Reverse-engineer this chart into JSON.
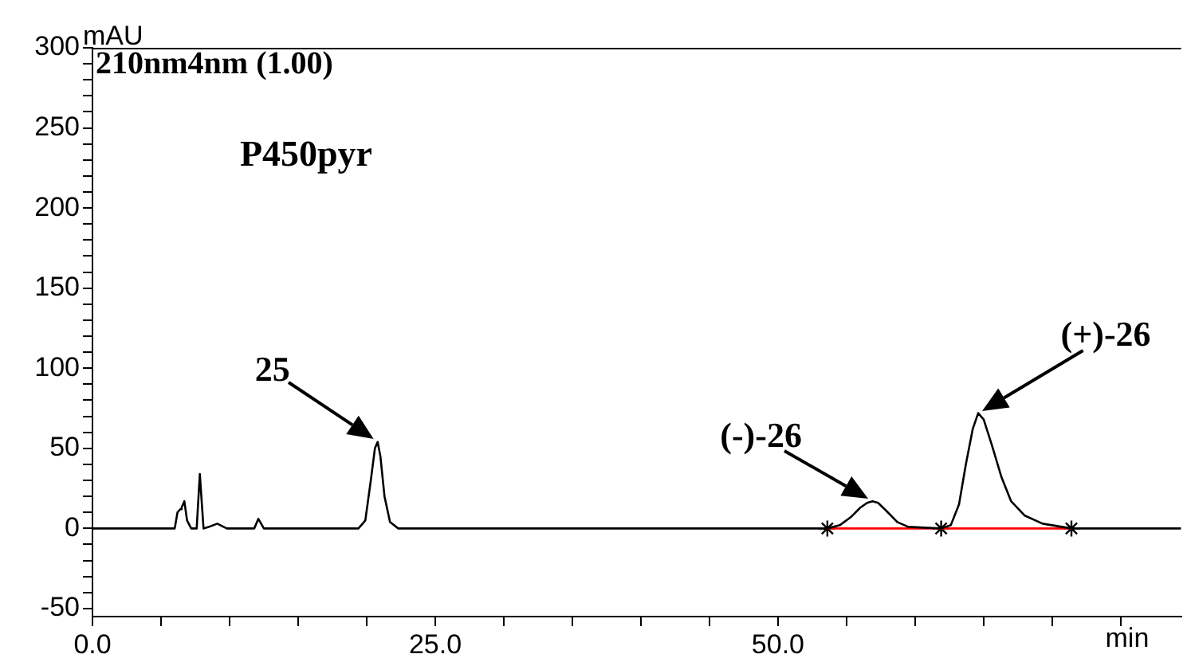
{
  "chart_data": {
    "type": "line",
    "title": "P450pyr",
    "subtitle": "210nm4nm (1.00)",
    "xlabel": "min",
    "ylabel": "mAU",
    "xlim": [
      0,
      79.4
    ],
    "ylim": [
      -55,
      300
    ],
    "xticks": [
      {
        "value": 0,
        "label": "0.0"
      },
      {
        "value": 5,
        "label": null
      },
      {
        "value": 10,
        "label": null
      },
      {
        "value": 15,
        "label": null
      },
      {
        "value": 20,
        "label": null
      },
      {
        "value": 25,
        "label": "25.0"
      },
      {
        "value": 30,
        "label": null
      },
      {
        "value": 35,
        "label": null
      },
      {
        "value": 40,
        "label": null
      },
      {
        "value": 45,
        "label": null
      },
      {
        "value": 50,
        "label": "50.0"
      },
      {
        "value": 55,
        "label": null
      },
      {
        "value": 60,
        "label": null
      },
      {
        "value": 65,
        "label": null
      },
      {
        "value": 70,
        "label": null
      },
      {
        "value": 75,
        "label": null
      }
    ],
    "yticks": [
      -50,
      {
        "value": -40,
        "label": null
      },
      {
        "value": -30,
        "label": null
      },
      {
        "value": -20,
        "label": null
      },
      {
        "value": -10,
        "label": null
      },
      0,
      {
        "value": 10,
        "label": null
      },
      {
        "value": 20,
        "label": null
      },
      {
        "value": 30,
        "label": null
      },
      {
        "value": 40,
        "label": null
      },
      50,
      {
        "value": 60,
        "label": null
      },
      {
        "value": 70,
        "label": null
      },
      {
        "value": 80,
        "label": null
      },
      {
        "value": 90,
        "label": null
      },
      100,
      {
        "value": 110,
        "label": null
      },
      {
        "value": 120,
        "label": null
      },
      {
        "value": 130,
        "label": null
      },
      {
        "value": 140,
        "label": null
      },
      150,
      {
        "value": 160,
        "label": null
      },
      {
        "value": 170,
        "label": null
      },
      {
        "value": 180,
        "label": null
      },
      {
        "value": 190,
        "label": null
      },
      200,
      {
        "value": 210,
        "label": null
      },
      {
        "value": 220,
        "label": null
      },
      {
        "value": 230,
        "label": null
      },
      {
        "value": 240,
        "label": null
      },
      250,
      {
        "value": 260,
        "label": null
      },
      {
        "value": 270,
        "label": null
      },
      {
        "value": 280,
        "label": null
      },
      {
        "value": 290,
        "label": null
      },
      300
    ],
    "series": [
      {
        "color": "#000000",
        "marker": "none",
        "x": [
          0,
          6.0,
          6.2,
          6.4,
          6.5,
          6.7,
          6.9,
          7.2,
          7.6,
          7.83,
          8.1,
          8.5,
          9.1,
          9.8,
          11.8,
          12.1,
          12.5,
          15,
          19.4,
          19.9,
          20.3,
          20.6,
          20.8,
          21.0,
          21.3,
          21.7,
          22.3,
          30,
          40,
          50,
          53.6,
          54.5,
          55.3,
          56.0,
          56.5,
          56.9,
          57.3,
          57.9,
          58.7,
          59.5,
          61.9,
          62.6,
          63.2,
          63.7,
          64.2,
          64.6,
          65.0,
          65.6,
          66.3,
          67.0,
          68.0,
          69.3,
          71.4,
          75,
          79.4
        ],
        "values": [
          0,
          0,
          10,
          12,
          13,
          17,
          5,
          0,
          0,
          34,
          0,
          1,
          3,
          0,
          0,
          6,
          0,
          0,
          0,
          5,
          30,
          50,
          54,
          45,
          20,
          4,
          0,
          0,
          0,
          0,
          0,
          2,
          7,
          13,
          16,
          17,
          16,
          11,
          4,
          1,
          0,
          2,
          15,
          40,
          62,
          72,
          68,
          52,
          32,
          17,
          8,
          3,
          0,
          0,
          0
        ]
      },
      {
        "color": "#ff0000",
        "marker": "none",
        "x": [
          53.6,
          71.4
        ],
        "values": [
          0,
          0
        ]
      },
      {
        "type": "scatter",
        "color": "#000000",
        "marker": "cross",
        "x": [
          53.6,
          61.9,
          71.4
        ],
        "values": [
          0,
          0,
          0
        ]
      }
    ],
    "annotations": [
      {
        "text": "25",
        "x": 20.8,
        "y": 54
      },
      {
        "text": "(-)-26",
        "x": 56.9,
        "y": 17
      },
      {
        "text": "(+)-26",
        "x": 64.6,
        "y": 72
      }
    ]
  }
}
